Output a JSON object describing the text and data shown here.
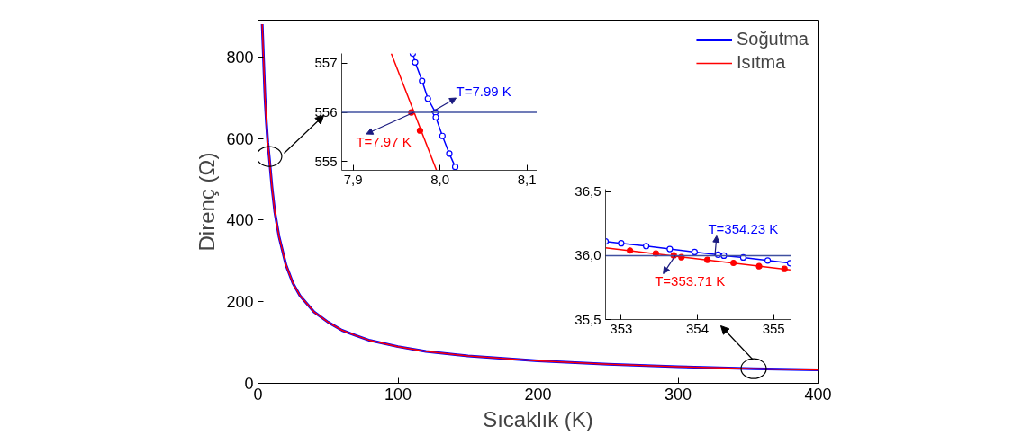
{
  "chart_data": [
    {
      "type": "line",
      "xlabel": "Sıcaklık (K)",
      "ylabel": "Direnç (Ω)",
      "xlim": [
        0,
        400
      ],
      "ylim": [
        0,
        890
      ],
      "xticks": [
        0,
        100,
        200,
        300,
        400
      ],
      "yticks": [
        0,
        200,
        400,
        600,
        800
      ],
      "legend": "top right",
      "grid": false,
      "series": [
        {
          "name": "Soğutma",
          "color": "#0000ff",
          "x": [
            3,
            4,
            5,
            6,
            7,
            8,
            10,
            12,
            15,
            20,
            25,
            30,
            40,
            50,
            60,
            70,
            80,
            100,
            120,
            150,
            200,
            250,
            300,
            354,
            400
          ],
          "values": [
            880,
            790,
            700,
            640,
            590,
            556,
            480,
            420,
            360,
            290,
            245,
            215,
            175,
            150,
            130,
            117,
            105,
            90,
            78,
            67,
            55,
            47,
            41,
            36,
            33
          ]
        },
        {
          "name": "Isıtma",
          "color": "#ff0000",
          "x": [
            3,
            4,
            5,
            6,
            7,
            8,
            10,
            12,
            15,
            20,
            25,
            30,
            40,
            50,
            60,
            70,
            80,
            100,
            120,
            150,
            200,
            250,
            300,
            354,
            400
          ],
          "values": [
            880,
            790,
            700,
            640,
            590,
            556,
            480,
            420,
            360,
            290,
            245,
            215,
            175,
            150,
            130,
            117,
            105,
            90,
            78,
            67,
            55,
            47,
            41,
            36,
            33
          ]
        }
      ]
    },
    {
      "type": "line",
      "xlim": [
        7.887,
        8.121
      ],
      "ylim": [
        554.82,
        557.2
      ],
      "grid": false,
      "xticks": [
        {
          "value": 7.9,
          "label": "7,9"
        },
        {
          "value": 8.0,
          "label": "8,0"
        },
        {
          "value": 8.1,
          "label": "8,1"
        }
      ],
      "yticks": [
        555,
        556,
        557
      ],
      "ref_lines": [
        {
          "axis": "y",
          "value": 556,
          "color": "#4050a0"
        }
      ],
      "annotations": [
        {
          "text": "T=7.99 K",
          "x": 7.99,
          "y": 556
        },
        {
          "text": "T=7.97 K",
          "x": 7.97,
          "y": 556
        }
      ],
      "series": [
        {
          "color": "#0000ff",
          "marker": "circle",
          "x": [
            7.9687,
            7.9714,
            7.9794,
            7.9861,
            7.9948,
            7.9952,
            8.0028,
            8.0107,
            8.0175
          ],
          "values": [
            557.2,
            557.02,
            556.64,
            556.28,
            556.0,
            555.9,
            555.52,
            555.16,
            554.89
          ]
        },
        {
          "color": "#ff0000",
          "x": [
            7.944,
            7.996
          ],
          "values": [
            557.2,
            554.82
          ]
        },
        {
          "type": "scatter",
          "color": "#ff0000",
          "marker": "circle",
          "x": [
            7.967,
            7.977
          ],
          "values": [
            556.0,
            555.63
          ]
        }
      ]
    },
    {
      "type": "line",
      "xlim": [
        352.795,
        355.228
      ],
      "ylim": [
        35.5,
        36.52
      ],
      "grid": false,
      "xticks": [
        353,
        354,
        355
      ],
      "yticks": [
        {
          "value": 35.5,
          "label": "35,5"
        },
        {
          "value": 36.0,
          "label": "36,0"
        },
        {
          "value": 36.5,
          "label": "36,5"
        }
      ],
      "ref_lines": [
        {
          "axis": "y",
          "value": 36.0,
          "color": "#4050a0"
        }
      ],
      "annotations": [
        {
          "text": "T=354.23 K",
          "x": 354.23,
          "y": 36.0
        },
        {
          "text": "T=353.71 K",
          "x": 353.71,
          "y": 36.0
        }
      ],
      "series": [
        {
          "color": "#0000ff",
          "marker": "circle",
          "x": [
            352.795,
            353.0,
            353.328,
            353.638,
            353.963,
            354.272,
            354.347,
            354.601,
            354.922,
            355.216
          ],
          "values": [
            36.111,
            36.097,
            36.075,
            36.052,
            36.028,
            36.007,
            36.0,
            35.986,
            35.962,
            35.941
          ]
        },
        {
          "color": "#ff0000",
          "x": [
            352.795,
            355.22
          ],
          "values": [
            36.061,
            35.889
          ]
        },
        {
          "type": "scatter",
          "color": "#ff0000",
          "marker": "circle",
          "x": [
            353.116,
            353.455,
            353.69,
            353.791,
            354.131,
            354.474,
            354.81,
            355.142
          ],
          "values": [
            36.04,
            36.017,
            36.002,
            35.988,
            35.967,
            35.943,
            35.917,
            35.896
          ]
        }
      ]
    }
  ]
}
